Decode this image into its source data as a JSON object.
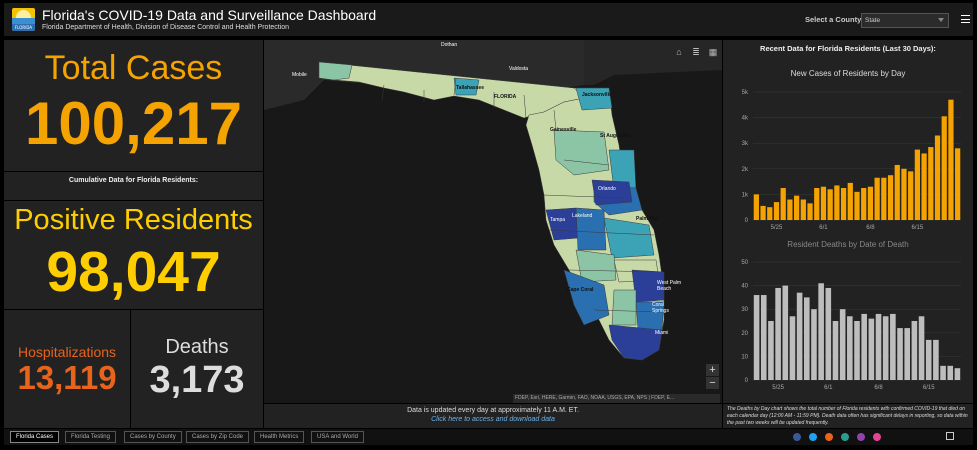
{
  "header": {
    "logo_text": "FLORIDA HEALTH",
    "title": "Florida's COVID-19 Data and Surveillance Dashboard",
    "subtitle": "Florida Department of Health, Division of Disease Control and Health Protection",
    "county_label": "Select a County",
    "county_value": "State"
  },
  "stats": {
    "total_label": "Total Cases",
    "total_value": "100,217",
    "cumulative_label": "Cumulative Data for Florida Residents:",
    "positive_label": "Positive Residents",
    "positive_value": "98,047",
    "hosp_label": "Hospitalizations",
    "hosp_value": "13,119",
    "deaths_label": "Deaths",
    "deaths_value": "3,173"
  },
  "map": {
    "labels": {
      "dothan": "Dothan",
      "valdosta": "Valdosta",
      "mobile": "Mobile",
      "tallahassee": "Tallahassee",
      "florida": "FLORIDA",
      "jacksonville": "Jacksonville",
      "gainesville": "Gainesville",
      "st_augustine": "St Augustine",
      "orlando": "Orlando",
      "tampa": "Tampa",
      "lakeland": "Lakeland",
      "palm_bay": "Palm Bay",
      "cape_coral": "Cape Coral",
      "west_palm_beach": "West Palm Beach",
      "coral_springs": "Coral Springs",
      "miami": "Miami"
    },
    "attribution": "FDEP, Esri, HERE, Garmin, FAO, NOAA, USGS, EPA, NPS | FDEP, E...",
    "colors": {
      "low": "#c8d9a8",
      "low_mid": "#8cc5a6",
      "mid": "#3ba3b5",
      "high": "#2a6fb0",
      "highest": "#2b3f99"
    }
  },
  "update": {
    "text": "Data is updated every day at approximately 11 A.M. ET.",
    "link": "Click here to access and download data"
  },
  "right": {
    "heading": "Recent Data for Florida Residents (Last 30 Days):",
    "note": "The Deaths by Day chart shows the total number of Florida residents with confirmed COVID-19 that died on each calendar day (12:00 AM - 11:59 PM). Death data often has significant delays in reporting, so data within the past two weeks will be updated frequently."
  },
  "chart_data": [
    {
      "type": "bar",
      "title": "New Cases of Residents by Day",
      "color": "#f5a300",
      "yticks": [
        "0",
        "1k",
        "2k",
        "3k",
        "4k",
        "5k"
      ],
      "ylim": [
        0,
        5000
      ],
      "xticks": [
        "5/25",
        "6/1",
        "6/8",
        "6/15"
      ],
      "values": [
        1000,
        550,
        500,
        700,
        1250,
        800,
        950,
        800,
        650,
        1250,
        1300,
        1200,
        1350,
        1250,
        1450,
        1100,
        1250,
        1300,
        1650,
        1650,
        1750,
        2150,
        2000,
        1900,
        2750,
        2600,
        2850,
        3300,
        4050,
        4700,
        2800
      ]
    },
    {
      "type": "bar",
      "title": "Resident Deaths by Date of Death",
      "color": "#bdbdbd",
      "yticks": [
        "0",
        "10",
        "20",
        "30",
        "40",
        "50"
      ],
      "ylim": [
        0,
        50
      ],
      "xticks": [
        "5/25",
        "6/1",
        "6/8",
        "6/15"
      ],
      "values": [
        36,
        36,
        25,
        39,
        40,
        27,
        37,
        35,
        30,
        41,
        39,
        25,
        30,
        27,
        25,
        28,
        26,
        28,
        27,
        28,
        22,
        22,
        25,
        27,
        17,
        17,
        6,
        6,
        5
      ]
    }
  ],
  "tabs": [
    "Florida Cases",
    "Florida Testing",
    "Cases by County",
    "Cases by Zip Code",
    "Health Metrics",
    "USA and World"
  ],
  "social_colors": [
    "#3b5998",
    "#1da1f2",
    "#e8631b",
    "#2a9d8f",
    "#8e44ad",
    "#e84393"
  ]
}
